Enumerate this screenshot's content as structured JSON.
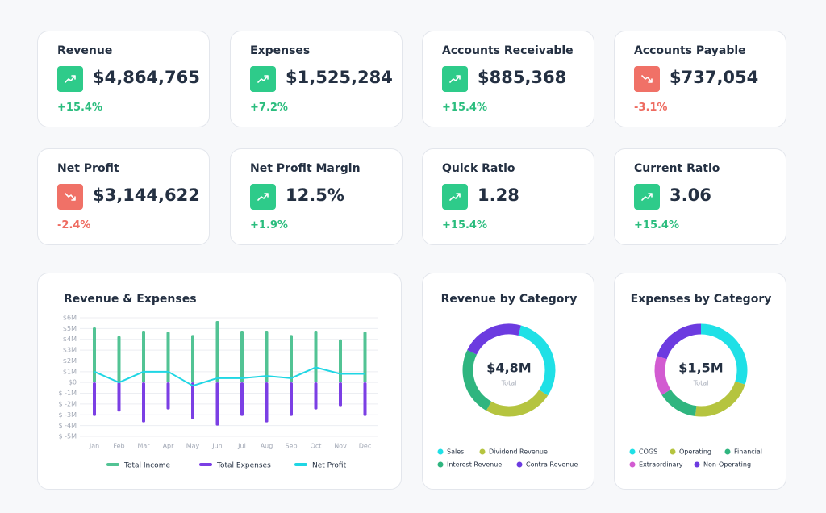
{
  "kpis": [
    {
      "title": "Revenue",
      "value": "$4,864,765",
      "change": "+15.4%",
      "trend": "up"
    },
    {
      "title": "Expenses",
      "value": "$1,525,284",
      "change": "+7.2%",
      "trend": "up"
    },
    {
      "title": "Accounts Receivable",
      "value": "$885,368",
      "change": "+15.4%",
      "trend": "up"
    },
    {
      "title": "Accounts Payable",
      "value": "$737,054",
      "change": "-3.1%",
      "trend": "down"
    },
    {
      "title": "Net Profit",
      "value": "$3,144,622",
      "change": "-2.4%",
      "trend": "down"
    },
    {
      "title": "Net Profit Margin",
      "value": "12.5%",
      "change": "+1.9%",
      "trend": "up"
    },
    {
      "title": "Quick Ratio",
      "value": "1.28",
      "change": "+15.4%",
      "trend": "up"
    },
    {
      "title": "Current Ratio",
      "value": "3.06",
      "change": "+15.4%",
      "trend": "up"
    }
  ],
  "chart_data": [
    {
      "type": "bar-line",
      "title": "Revenue & Expenses",
      "categories": [
        "Jan",
        "Feb",
        "Mar",
        "Apr",
        "May",
        "Jun",
        "Jul",
        "Aug",
        "Sep",
        "Oct",
        "Nov",
        "Dec"
      ],
      "series": [
        {
          "name": "Total Income",
          "kind": "bar",
          "color": "#52c394",
          "values": [
            5.1,
            4.3,
            4.8,
            4.7,
            4.4,
            5.7,
            4.8,
            4.8,
            4.4,
            4.8,
            4.0,
            4.7
          ]
        },
        {
          "name": "Total Expenses",
          "kind": "bar",
          "color": "#7b3fe4",
          "values": [
            -3.1,
            -2.7,
            -3.7,
            -2.5,
            -3.4,
            -4.0,
            -3.1,
            -3.7,
            -3.1,
            -2.5,
            -2.2,
            -3.1
          ]
        },
        {
          "name": "Net Profit",
          "kind": "line",
          "color": "#1fd6e4",
          "values": [
            1.0,
            0,
            1.0,
            1.0,
            -0.3,
            0.4,
            0.4,
            0.6,
            0.4,
            1.4,
            0.8,
            0.8
          ]
        }
      ],
      "ylim": [
        -5,
        6
      ],
      "yticks": [
        {
          "value": 6,
          "label": "$6M"
        },
        {
          "value": 5,
          "label": "$5M"
        },
        {
          "value": 4,
          "label": "$4M"
        },
        {
          "value": 3,
          "label": "$3M"
        },
        {
          "value": 2,
          "label": "$2M"
        },
        {
          "value": 1,
          "label": "$1M"
        },
        {
          "value": 0,
          "label": "$0"
        },
        {
          "value": -1,
          "label": "$ -1M"
        },
        {
          "value": -2,
          "label": "$ -2M"
        },
        {
          "value": -3,
          "label": "$ -3M"
        },
        {
          "value": -4,
          "label": "$ -4M"
        },
        {
          "value": -5,
          "label": "$ -5M"
        }
      ],
      "grid": true
    },
    {
      "type": "donut",
      "title": "Revenue by Category",
      "center_label": "$4,8M",
      "center_sublabel": "Total",
      "categories": [
        "Sales",
        "Dividend Revenue",
        "Interest Revenue",
        "Contra Revenue"
      ],
      "values": [
        30,
        24,
        24,
        22
      ],
      "colors": [
        "#1fe0e6",
        "#b5c43f",
        "#2fb57f",
        "#6c3be0"
      ]
    },
    {
      "type": "donut",
      "title": "Expenses by Category",
      "center_label": "$1,5M",
      "center_sublabel": "Total",
      "categories": [
        "COGS",
        "Operating",
        "Financial",
        "Extraordinary",
        "Non-Operating"
      ],
      "values": [
        30,
        22,
        14,
        14,
        20
      ],
      "colors": [
        "#1fe0e6",
        "#b5c43f",
        "#2fb57f",
        "#d25bd1",
        "#6c3be0"
      ]
    }
  ]
}
